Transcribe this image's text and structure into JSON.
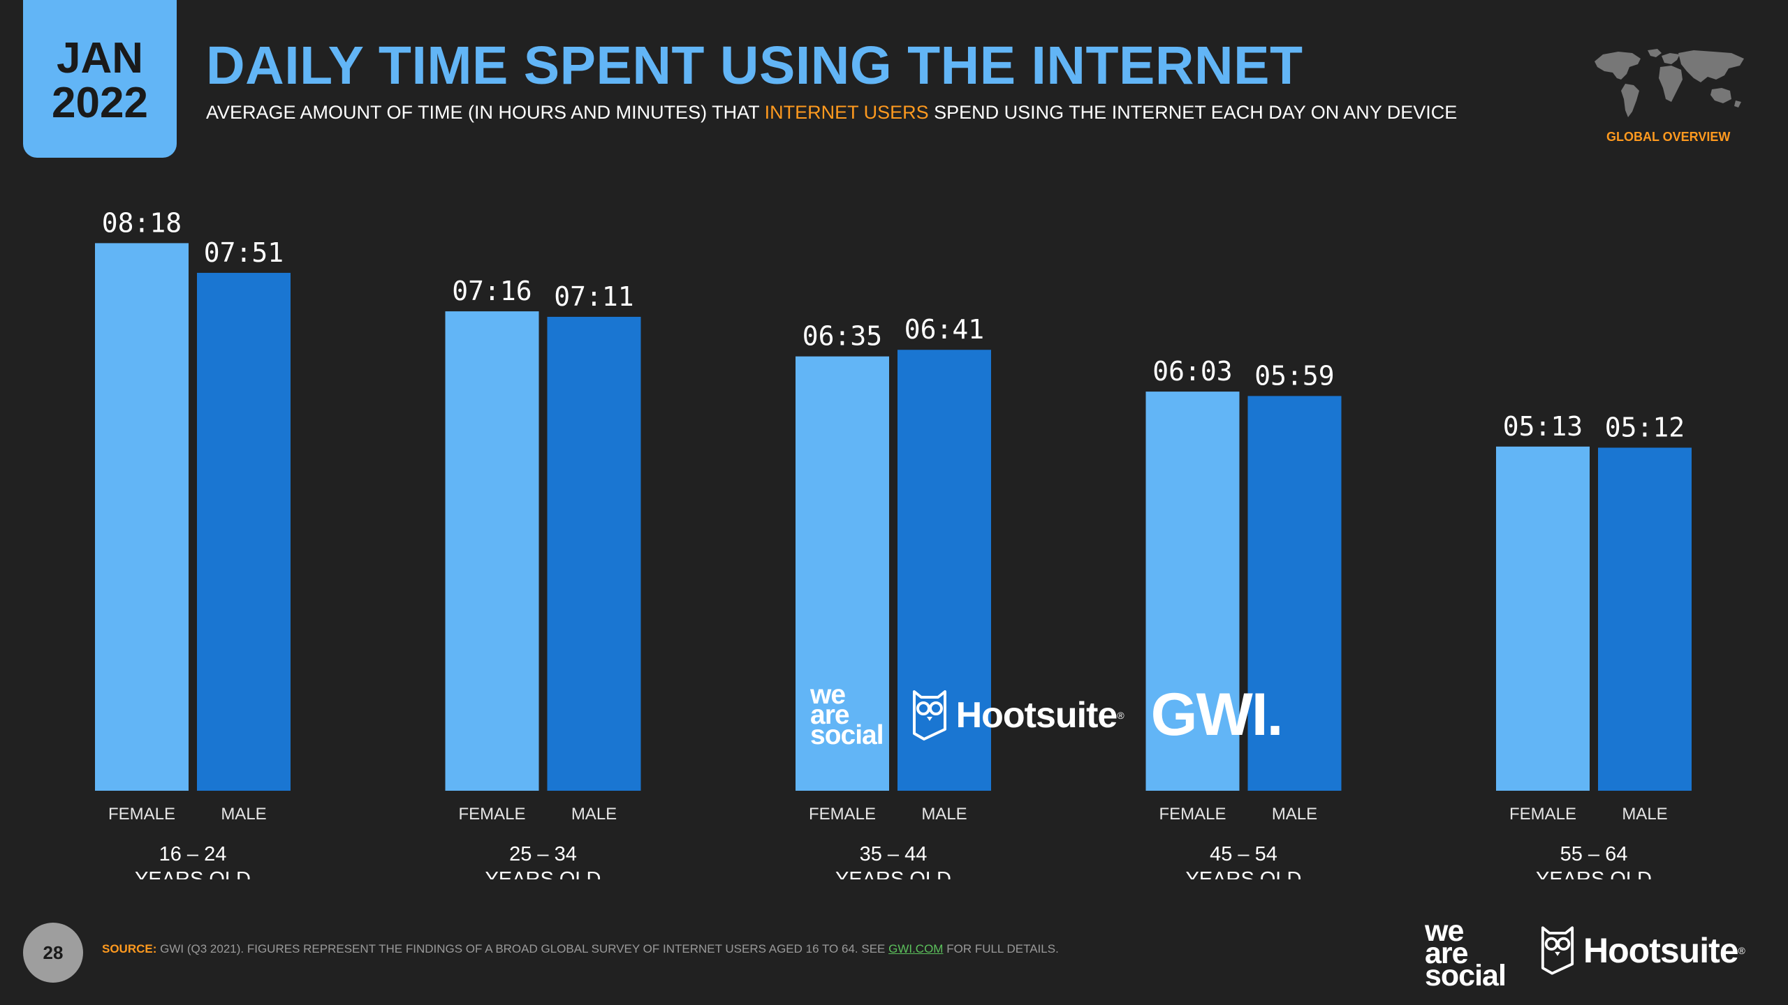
{
  "header": {
    "date_month": "JAN",
    "date_year": "2022",
    "title": "DAILY TIME SPENT USING THE INTERNET",
    "subtitle_pre": "AVERAGE AMOUNT OF TIME (IN HOURS AND MINUTES) THAT ",
    "subtitle_highlight": "INTERNET USERS",
    "subtitle_post": " SPEND USING THE INTERNET EACH DAY ON ANY DEVICE",
    "region_label": "GLOBAL OVERVIEW"
  },
  "colors": {
    "background": "#212121",
    "female": "#62b5f6",
    "male": "#1a76d2",
    "accent": "#ff9a1f",
    "title": "#62b5f6"
  },
  "chart_data": {
    "type": "bar",
    "title": "DAILY TIME SPENT USING THE INTERNET",
    "unit": "hours:minutes",
    "categories": [
      "16 – 24",
      "25 – 34",
      "35 – 44",
      "45 – 54",
      "55 – 64"
    ],
    "category_suffix": "YEARS OLD",
    "series": [
      {
        "name": "FEMALE",
        "labels": [
          "08:18",
          "07:16",
          "06:35",
          "06:03",
          "05:13"
        ],
        "values_minutes": [
          498,
          436,
          395,
          363,
          313
        ]
      },
      {
        "name": "MALE",
        "labels": [
          "07:51",
          "07:11",
          "06:41",
          "05:59",
          "05:12"
        ],
        "values_minutes": [
          471,
          431,
          401,
          359,
          312
        ]
      }
    ],
    "ylim_minutes": [
      0,
      540
    ],
    "grid": false
  },
  "watermark": {
    "we_are_social": [
      "we",
      "are",
      "social"
    ],
    "hootsuite": "Hootsuite",
    "gwi": "GWI."
  },
  "footer": {
    "page_number": "28",
    "source_label": "SOURCE:",
    "source_text": " GWI (Q3 2021). FIGURES REPRESENT THE FINDINGS OF A BROAD GLOBAL SURVEY OF INTERNET USERS AGED 16 TO 64. SEE ",
    "source_link": "GWI.COM",
    "source_end": " FOR FULL DETAILS.",
    "we_are_social": [
      "we",
      "are",
      "social"
    ],
    "hootsuite": "Hootsuite"
  },
  "icons": [
    "world-map-icon",
    "hootsuite-owl-icon"
  ]
}
